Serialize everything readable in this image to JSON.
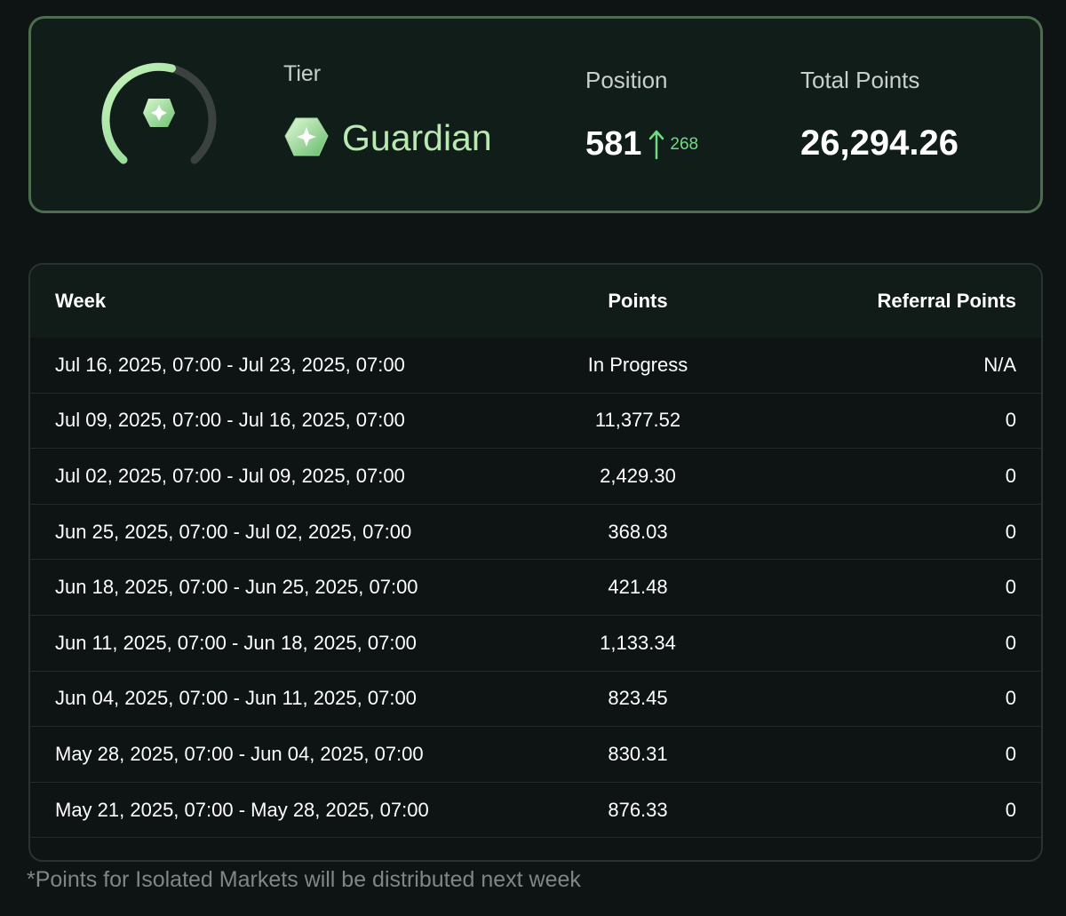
{
  "summary": {
    "tier_label": "Tier",
    "tier_name": "Guardian",
    "tier_icon": "guardian-gem-icon",
    "tier_progress": 0.55,
    "position_label": "Position",
    "position_value": "581",
    "position_change": "268",
    "total_points_label": "Total Points",
    "total_points_value": "26,294.26",
    "colors": {
      "accent_green": "#b9e8b3",
      "up_green": "#6fdc83",
      "card_border": "#4c6e4f"
    }
  },
  "table": {
    "headers": {
      "week": "Week",
      "points": "Points",
      "referral_points": "Referral Points"
    },
    "rows": [
      {
        "week": "Jul 16, 2025, 07:00 - Jul 23, 2025, 07:00",
        "points": "In Progress",
        "referral": "N/A"
      },
      {
        "week": "Jul 09, 2025, 07:00 - Jul 16, 2025, 07:00",
        "points": "11,377.52",
        "referral": "0"
      },
      {
        "week": "Jul 02, 2025, 07:00 - Jul 09, 2025, 07:00",
        "points": "2,429.30",
        "referral": "0"
      },
      {
        "week": "Jun 25, 2025, 07:00 - Jul 02, 2025, 07:00",
        "points": "368.03",
        "referral": "0"
      },
      {
        "week": "Jun 18, 2025, 07:00 - Jun 25, 2025, 07:00",
        "points": "421.48",
        "referral": "0"
      },
      {
        "week": "Jun 11, 2025, 07:00 - Jun 18, 2025, 07:00",
        "points": "1,133.34",
        "referral": "0"
      },
      {
        "week": "Jun 04, 2025, 07:00 - Jun 11, 2025, 07:00",
        "points": "823.45",
        "referral": "0"
      },
      {
        "week": "May 28, 2025, 07:00 - Jun 04, 2025, 07:00",
        "points": "830.31",
        "referral": "0"
      },
      {
        "week": "May 21, 2025, 07:00 - May 28, 2025, 07:00",
        "points": "876.33",
        "referral": "0"
      }
    ]
  },
  "footnote": "*Points for Isolated Markets will be distributed next week"
}
